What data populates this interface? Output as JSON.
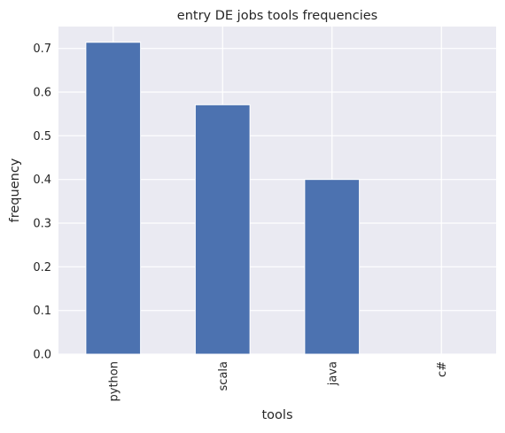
{
  "chart_data": {
    "type": "bar",
    "title": "entry DE jobs tools frequencies",
    "xlabel": "tools",
    "ylabel": "frequency",
    "categories": [
      "python",
      "scala",
      "java",
      "c#"
    ],
    "values": [
      0.714,
      0.571,
      0.4,
      0.0
    ],
    "ylim": [
      0,
      0.75
    ],
    "yticks": [
      "0.0",
      "0.1",
      "0.2",
      "0.3",
      "0.4",
      "0.5",
      "0.6",
      "0.7"
    ],
    "grid": true,
    "colors": {
      "bar": "#4c72b0",
      "plot_background": "#eaeaf2",
      "grid": "#ffffff"
    }
  }
}
